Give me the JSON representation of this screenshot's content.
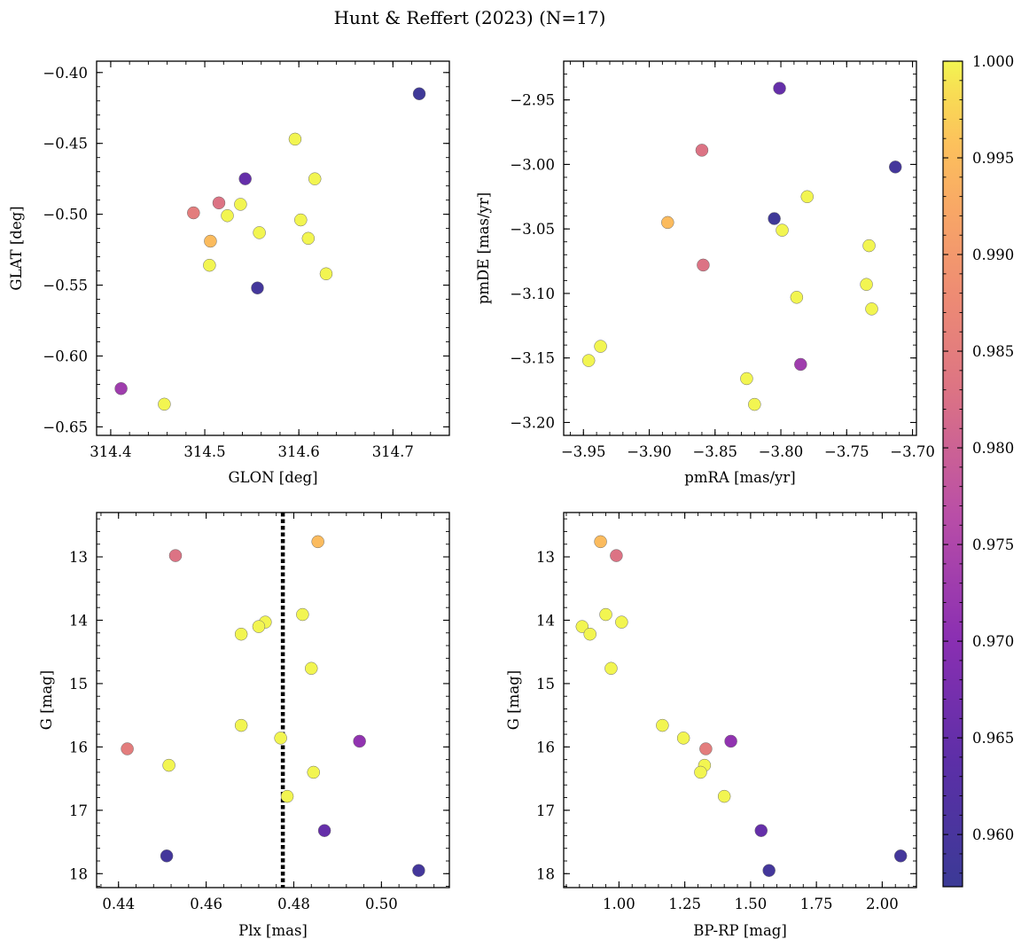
{
  "figure": {
    "title": "Hunt & Reffert (2023) (N=17)"
  },
  "colorbar": {
    "min": 0.9573,
    "max": 1.0,
    "ticks": [
      "0.960",
      "0.965",
      "0.970",
      "0.975",
      "0.980",
      "0.985",
      "0.990",
      "0.995",
      "1.000"
    ],
    "colormap": "plasma"
  },
  "chart_data": [
    {
      "type": "scatter",
      "xlabel": "GLON [deg]",
      "ylabel": "GLAT [deg]",
      "xlim": [
        314.385,
        314.76
      ],
      "ylim": [
        -0.656,
        -0.392
      ],
      "xticks": [
        "314.4",
        "314.5",
        "314.6",
        "314.7"
      ],
      "yticks": [
        "−0.40",
        "−0.45",
        "−0.50",
        "−0.55",
        "−0.60",
        "−0.65"
      ],
      "y_inverted": false,
      "points": [
        {
          "x": 314.728,
          "y": -0.415,
          "c": 0.958
        },
        {
          "x": 314.596,
          "y": -0.447,
          "c": 1.0
        },
        {
          "x": 314.543,
          "y": -0.475,
          "c": 0.965
        },
        {
          "x": 314.617,
          "y": -0.475,
          "c": 1.0
        },
        {
          "x": 314.515,
          "y": -0.492,
          "c": 0.983
        },
        {
          "x": 314.538,
          "y": -0.493,
          "c": 1.0
        },
        {
          "x": 314.488,
          "y": -0.499,
          "c": 0.985
        },
        {
          "x": 314.524,
          "y": -0.501,
          "c": 1.0
        },
        {
          "x": 314.602,
          "y": -0.504,
          "c": 1.0
        },
        {
          "x": 314.558,
          "y": -0.513,
          "c": 1.0
        },
        {
          "x": 314.61,
          "y": -0.517,
          "c": 1.0
        },
        {
          "x": 314.506,
          "y": -0.519,
          "c": 0.995
        },
        {
          "x": 314.505,
          "y": -0.536,
          "c": 1.0
        },
        {
          "x": 314.629,
          "y": -0.542,
          "c": 1.0
        },
        {
          "x": 314.556,
          "y": -0.552,
          "c": 0.959
        },
        {
          "x": 314.411,
          "y": -0.623,
          "c": 0.973
        },
        {
          "x": 314.457,
          "y": -0.634,
          "c": 1.0
        }
      ]
    },
    {
      "type": "scatter",
      "xlabel": "pmRA [mas/yr]",
      "ylabel": "pmDE [mas/yr]",
      "xlim": [
        -3.965,
        -3.697
      ],
      "ylim": [
        -3.21,
        -2.92
      ],
      "xticks": [
        "−3.95",
        "−3.90",
        "−3.85",
        "−3.80",
        "−3.75",
        "−3.70"
      ],
      "yticks": [
        "−2.95",
        "−3.00",
        "−3.05",
        "−3.10",
        "−3.15",
        "−3.20"
      ],
      "y_inverted": false,
      "points": [
        {
          "x": -3.801,
          "y": -2.941,
          "c": 0.965
        },
        {
          "x": -3.86,
          "y": -2.989,
          "c": 0.983
        },
        {
          "x": -3.713,
          "y": -3.002,
          "c": 0.959
        },
        {
          "x": -3.78,
          "y": -3.025,
          "c": 1.0
        },
        {
          "x": -3.805,
          "y": -3.042,
          "c": 0.958
        },
        {
          "x": -3.886,
          "y": -3.045,
          "c": 0.995
        },
        {
          "x": -3.799,
          "y": -3.051,
          "c": 1.0
        },
        {
          "x": -3.733,
          "y": -3.063,
          "c": 1.0
        },
        {
          "x": -3.859,
          "y": -3.078,
          "c": 0.983
        },
        {
          "x": -3.735,
          "y": -3.093,
          "c": 1.0
        },
        {
          "x": -3.788,
          "y": -3.103,
          "c": 1.0
        },
        {
          "x": -3.731,
          "y": -3.112,
          "c": 1.0
        },
        {
          "x": -3.937,
          "y": -3.141,
          "c": 1.0
        },
        {
          "x": -3.946,
          "y": -3.152,
          "c": 1.0
        },
        {
          "x": -3.785,
          "y": -3.155,
          "c": 0.973
        },
        {
          "x": -3.826,
          "y": -3.166,
          "c": 1.0
        },
        {
          "x": -3.82,
          "y": -3.186,
          "c": 1.0
        }
      ]
    },
    {
      "type": "scatter",
      "xlabel": "Plx [mas]",
      "ylabel": "G [mag]",
      "xlim": [
        0.435,
        0.5155
      ],
      "ylim": [
        18.22,
        12.3
      ],
      "xticks": [
        "0.44",
        "0.46",
        "0.48",
        "0.50"
      ],
      "yticks": [
        "13",
        "14",
        "15",
        "16",
        "17",
        "18"
      ],
      "y_inverted": true,
      "vline": 0.4775,
      "points": [
        {
          "x": 0.4855,
          "y": 12.76,
          "c": 0.995
        },
        {
          "x": 0.453,
          "y": 12.98,
          "c": 0.983
        },
        {
          "x": 0.482,
          "y": 13.91,
          "c": 1.0
        },
        {
          "x": 0.4735,
          "y": 14.03,
          "c": 1.0
        },
        {
          "x": 0.472,
          "y": 14.1,
          "c": 1.0
        },
        {
          "x": 0.468,
          "y": 14.22,
          "c": 1.0
        },
        {
          "x": 0.484,
          "y": 14.76,
          "c": 1.0
        },
        {
          "x": 0.468,
          "y": 15.66,
          "c": 1.0
        },
        {
          "x": 0.477,
          "y": 15.86,
          "c": 1.0
        },
        {
          "x": 0.495,
          "y": 15.91,
          "c": 0.971
        },
        {
          "x": 0.442,
          "y": 16.03,
          "c": 0.985
        },
        {
          "x": 0.4515,
          "y": 16.29,
          "c": 1.0
        },
        {
          "x": 0.4845,
          "y": 16.4,
          "c": 1.0
        },
        {
          "x": 0.4785,
          "y": 16.78,
          "c": 1.0
        },
        {
          "x": 0.487,
          "y": 17.32,
          "c": 0.965
        },
        {
          "x": 0.451,
          "y": 17.72,
          "c": 0.959
        },
        {
          "x": 0.5085,
          "y": 17.95,
          "c": 0.959
        }
      ]
    },
    {
      "type": "scatter",
      "xlabel": "BP-RP [mag]",
      "ylabel": "G [mag]",
      "xlim": [
        0.79,
        2.13
      ],
      "ylim": [
        18.22,
        12.3
      ],
      "xticks": [
        "1.00",
        "1.25",
        "1.50",
        "1.75",
        "2.00"
      ],
      "yticks": [
        "13",
        "14",
        "15",
        "16",
        "17",
        "18"
      ],
      "y_inverted": true,
      "points": [
        {
          "x": 0.93,
          "y": 12.76,
          "c": 0.995
        },
        {
          "x": 0.99,
          "y": 12.98,
          "c": 0.983
        },
        {
          "x": 0.95,
          "y": 13.91,
          "c": 1.0
        },
        {
          "x": 1.01,
          "y": 14.03,
          "c": 1.0
        },
        {
          "x": 0.86,
          "y": 14.1,
          "c": 1.0
        },
        {
          "x": 0.89,
          "y": 14.22,
          "c": 1.0
        },
        {
          "x": 0.97,
          "y": 14.76,
          "c": 1.0
        },
        {
          "x": 1.165,
          "y": 15.66,
          "c": 1.0
        },
        {
          "x": 1.245,
          "y": 15.86,
          "c": 1.0
        },
        {
          "x": 1.425,
          "y": 15.91,
          "c": 0.971
        },
        {
          "x": 1.33,
          "y": 16.03,
          "c": 0.985
        },
        {
          "x": 1.325,
          "y": 16.29,
          "c": 1.0
        },
        {
          "x": 1.31,
          "y": 16.4,
          "c": 1.0
        },
        {
          "x": 1.4,
          "y": 16.78,
          "c": 1.0
        },
        {
          "x": 1.54,
          "y": 17.32,
          "c": 0.965
        },
        {
          "x": 2.07,
          "y": 17.72,
          "c": 0.959
        },
        {
          "x": 1.57,
          "y": 17.95,
          "c": 0.959
        }
      ]
    }
  ]
}
